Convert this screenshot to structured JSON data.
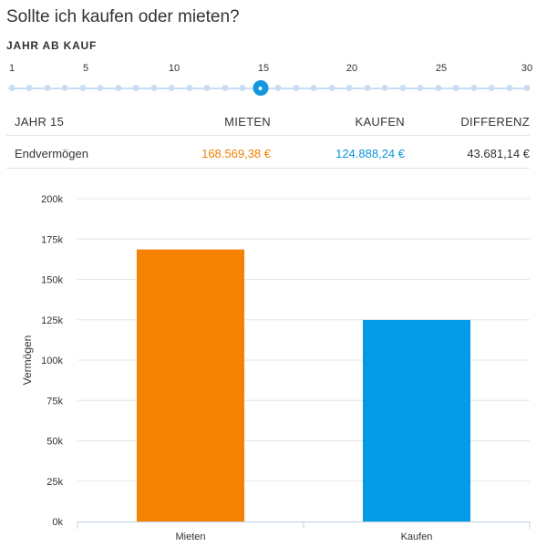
{
  "header": {
    "title": "Sollte ich kaufen oder mieten?"
  },
  "slider": {
    "label": "JAHR AB KAUF",
    "min": 1,
    "max": 30,
    "value": 15,
    "tick_labels": [
      "1",
      "5",
      "10",
      "15",
      "20",
      "25",
      "30"
    ]
  },
  "table": {
    "headers": {
      "year": "JAHR 15",
      "rent": "MIETEN",
      "buy": "KAUFEN",
      "diff": "DIFFERENZ"
    },
    "row": {
      "label": "Endvermögen",
      "rent": "168.569,38 €",
      "buy": "124.888,24 €",
      "diff": "43.681,14 €"
    },
    "colors": {
      "rent": "#f08000",
      "buy": "#0c96db",
      "diff": "#333333"
    }
  },
  "chart_data": {
    "type": "bar",
    "categories": [
      "Mieten",
      "Kaufen"
    ],
    "values": [
      168569.38,
      124888.24
    ],
    "colors": [
      "#f58200",
      "#039be5"
    ],
    "ylabel": "Vermögen",
    "ylim": [
      0,
      200000
    ],
    "yticks": [
      "0k",
      "25k",
      "50k",
      "75k",
      "100k",
      "125k",
      "150k",
      "175k",
      "200k"
    ],
    "grid": true
  }
}
